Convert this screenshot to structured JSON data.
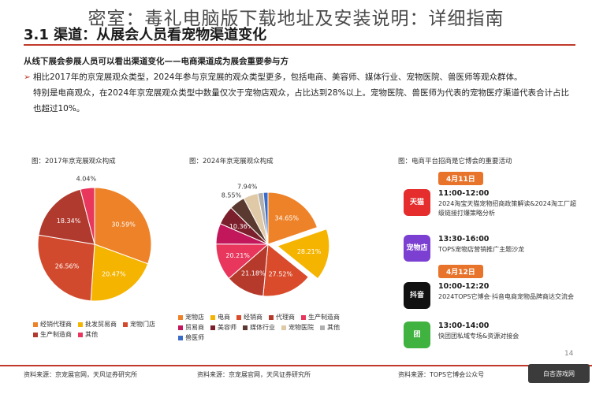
{
  "overlay_title": "密室：毒礼电脑版下载地址及安装说明：详细指南",
  "header": {
    "title": "3.1 渠道：从展会人员看宠物渠道变化"
  },
  "intro": {
    "lead": "从线下展会参展人员可以看出渠道变化——电商渠道成为展会重要参与方",
    "bullet_mark": "➢",
    "bullet_line1": "相比2017年的京宠展观众类型，2024年参与京宠展的观众类型更多，包括电商、美容师、媒体行业、宠物医院、兽医师等观众群体。",
    "bullet_line2": "特别是电商观众，在2024年京宠展观众类型中数量仅次于宠物店观众，占比达到28%以上。宠物医院、兽医师为代表的宠物医疗渠道代表合计占比也超过10%。"
  },
  "panels": {
    "left_title": "图：2017年京宠展观众构成",
    "mid_title": "图：2024年京宠展观众构成",
    "right_title": "图：电商平台招商是它博会的重要活动"
  },
  "chart_data": [
    {
      "type": "pie",
      "title": "图：2017年京宠展观众构成",
      "categories": [
        "经销代理商",
        "批发贸易商",
        "宠物门店",
        "生产制造商",
        "其他"
      ],
      "values": [
        30.59,
        20.47,
        26.56,
        18.34,
        4.04
      ],
      "labels": [
        "30.59%",
        "20.47%",
        "26.56%",
        "18.34%",
        "4.04%"
      ],
      "colors": [
        "#ee8228",
        "#f5b400",
        "#d24a2e",
        "#b03a2e",
        "#e8365d"
      ]
    },
    {
      "type": "pie",
      "title": "图：2024年京宠展观众构成",
      "categories": [
        "宠物店",
        "电商",
        "经销商",
        "代理商",
        "生产制造商",
        "贸易商",
        "美容师",
        "媒体行业",
        "宠物医院",
        "其他",
        "兽医师"
      ],
      "values": [
        34.65,
        28.21,
        27.52,
        21.18,
        20.21,
        11.22,
        10.36,
        8.55,
        7.94,
        3.12,
        2.5
      ],
      "labels": [
        "34.65%",
        "28.21%",
        "27.52%",
        "21.18%",
        "20.21%",
        "",
        "10.36%",
        "8.55%",
        "7.94%",
        "",
        ""
      ],
      "colors": [
        "#ee8228",
        "#f5b400",
        "#d94b2b",
        "#b53a2c",
        "#e8365d",
        "#c2185b",
        "#7a1f2b",
        "#5a3a30",
        "#e0c9a6",
        "#b0b0b0",
        "#3a6bc8"
      ]
    }
  ],
  "legend_left": [
    {
      "label": "经销代理商",
      "color": "#ee8228"
    },
    {
      "label": "批发贸易商",
      "color": "#f5b400"
    },
    {
      "label": "宠物门店",
      "color": "#d24a2e"
    },
    {
      "label": "生产制造商",
      "color": "#b03a2e"
    },
    {
      "label": "其他",
      "color": "#e8365d"
    }
  ],
  "legend_mid": [
    {
      "label": "宠物店",
      "color": "#ee8228"
    },
    {
      "label": "电商",
      "color": "#f5b400"
    },
    {
      "label": "经销商",
      "color": "#d94b2b"
    },
    {
      "label": "代理商",
      "color": "#b53a2c"
    },
    {
      "label": "生产制造商",
      "color": "#e8365d"
    },
    {
      "label": "贸易商",
      "color": "#c2185b"
    },
    {
      "label": "美容师",
      "color": "#7a1f2b"
    },
    {
      "label": "媒体行业",
      "color": "#5a3a30"
    },
    {
      "label": "宠物医院",
      "color": "#e0c9a6"
    },
    {
      "label": "其他",
      "color": "#b0b0b0"
    },
    {
      "label": "兽医师",
      "color": "#3a6bc8"
    }
  ],
  "events": {
    "date1": "4月11日",
    "date2": "4月12日",
    "items": [
      {
        "icon": "天猫",
        "icon_color": "#e52d2d",
        "time": "11:00-12:00",
        "desc": "2024淘宝天猫宠物招商政策解读&2024淘工厂超级链接打爆策略分析"
      },
      {
        "icon": "宠物店",
        "icon_color": "#7b3fd1",
        "time": "13:30-16:00",
        "desc": "TOPS宠物店营销推广主题沙龙"
      },
      {
        "icon": "抖音",
        "icon_color": "#111111",
        "time": "10:00-12:20",
        "desc": "2024TOPS它博会·抖音电商宠物品牌商达交流会"
      },
      {
        "icon": "团",
        "icon_color": "#3fb23f",
        "time": "13:00-14:00",
        "desc": "快团团私域专场&资源对接会"
      }
    ]
  },
  "page_number": "14",
  "footer": {
    "source_left": "资料来源：京宠展官网，天风证券研究所",
    "source_mid": "资料来源：京宠展官网，天风证券研究所",
    "source_right": "资料来源：TOPS它博会公众号",
    "watermark": "白杏游戏网"
  }
}
